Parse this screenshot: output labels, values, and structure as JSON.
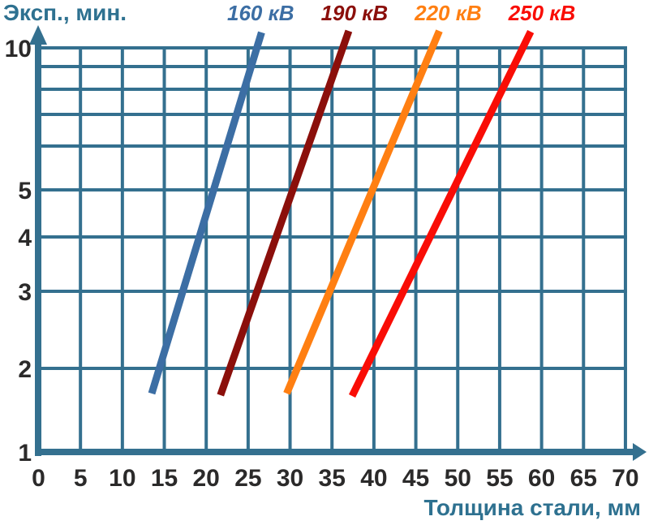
{
  "chart_data": {
    "type": "line",
    "title": "",
    "ylabel": "Эксп., мин.",
    "xlabel": "Толщина стали, мм",
    "x_ticks": [
      0,
      5,
      10,
      15,
      20,
      25,
      30,
      35,
      40,
      45,
      50,
      55,
      60,
      65,
      70
    ],
    "xlim": [
      0,
      70
    ],
    "y_gridlines": [
      1,
      2,
      3,
      4,
      5,
      6,
      7,
      8,
      9,
      10
    ],
    "y_tick_labels": [
      1,
      2,
      3,
      4,
      5,
      10
    ],
    "ylim": [
      1,
      10
    ],
    "y_scale": "log",
    "grid": true,
    "legend_position": "top",
    "series": [
      {
        "name": "160 кВ",
        "color": "#3C6EA4",
        "points": [
          [
            13.5,
            1.7
          ],
          [
            26.6,
            10.83
          ]
        ]
      },
      {
        "name": "190 кВ",
        "color": "#8B0F0B",
        "points": [
          [
            21.7,
            1.68
          ],
          [
            37.0,
            10.91
          ]
        ]
      },
      {
        "name": "220 кВ",
        "color": "#FF7F12",
        "points": [
          [
            29.6,
            1.7
          ],
          [
            47.8,
            10.91
          ]
        ]
      },
      {
        "name": "250 кВ",
        "color": "#F90D06",
        "points": [
          [
            37.4,
            1.67
          ],
          [
            58.7,
            10.87
          ]
        ]
      }
    ]
  },
  "colors": {
    "grid": "#34708F",
    "axis": "#34708F",
    "tick_text": "#2B2A2A",
    "axis_title_text": "#2E7190"
  }
}
